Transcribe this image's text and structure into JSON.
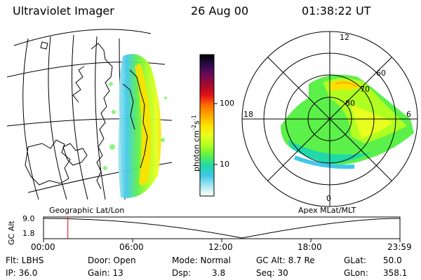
{
  "header": {
    "instrument": "Ultraviolet Imager",
    "date": "26 Aug 00",
    "time": "01:38:22 UT"
  },
  "colorbar": {
    "label": "photon cm",
    "label_exp1": "-2",
    "label_s": "s",
    "label_exp2": "-1",
    "ticks": [
      "100",
      "10"
    ],
    "colors": [
      "#000000",
      "#2a0a4a",
      "#6a0a5a",
      "#a40a2a",
      "#e0101a",
      "#ff6a00",
      "#ffa800",
      "#ffe000",
      "#e8ff20",
      "#b0ff20",
      "#5cf04a",
      "#20d8a8",
      "#40c8e8",
      "#a8e8f0",
      "#ffffff"
    ]
  },
  "maps": {
    "left_caption": "Geographic Lat/Lon",
    "right_caption": "Apex MLat/MLT",
    "polar_lat_labels": [
      "60",
      "70",
      "80"
    ],
    "polar_mlt_labels": [
      "12",
      "18",
      "6",
      "0"
    ]
  },
  "timeline": {
    "axis_label": "GC Alt",
    "y_top": "9.0",
    "y_bottom": "1.8",
    "ticks": [
      "00:00",
      "06:00",
      "12:00",
      "18:00",
      "23:59"
    ],
    "marker_time_hours": 1.64
  },
  "info": {
    "flt": "Flt: LBHS",
    "ip": "IP: 36.0",
    "door": "Door: Open",
    "gain": "Gain: 13",
    "mode": "Mode: Normal",
    "dsp_label": "Dsp:",
    "dsp_value": "3.8",
    "gcalt": "GC Alt: 8.7 Re",
    "seq": "Seq: 30",
    "glat_label": "GLat:",
    "glat_value": "50.0",
    "glon_label": "GLon:",
    "glon_value": "358.1"
  }
}
